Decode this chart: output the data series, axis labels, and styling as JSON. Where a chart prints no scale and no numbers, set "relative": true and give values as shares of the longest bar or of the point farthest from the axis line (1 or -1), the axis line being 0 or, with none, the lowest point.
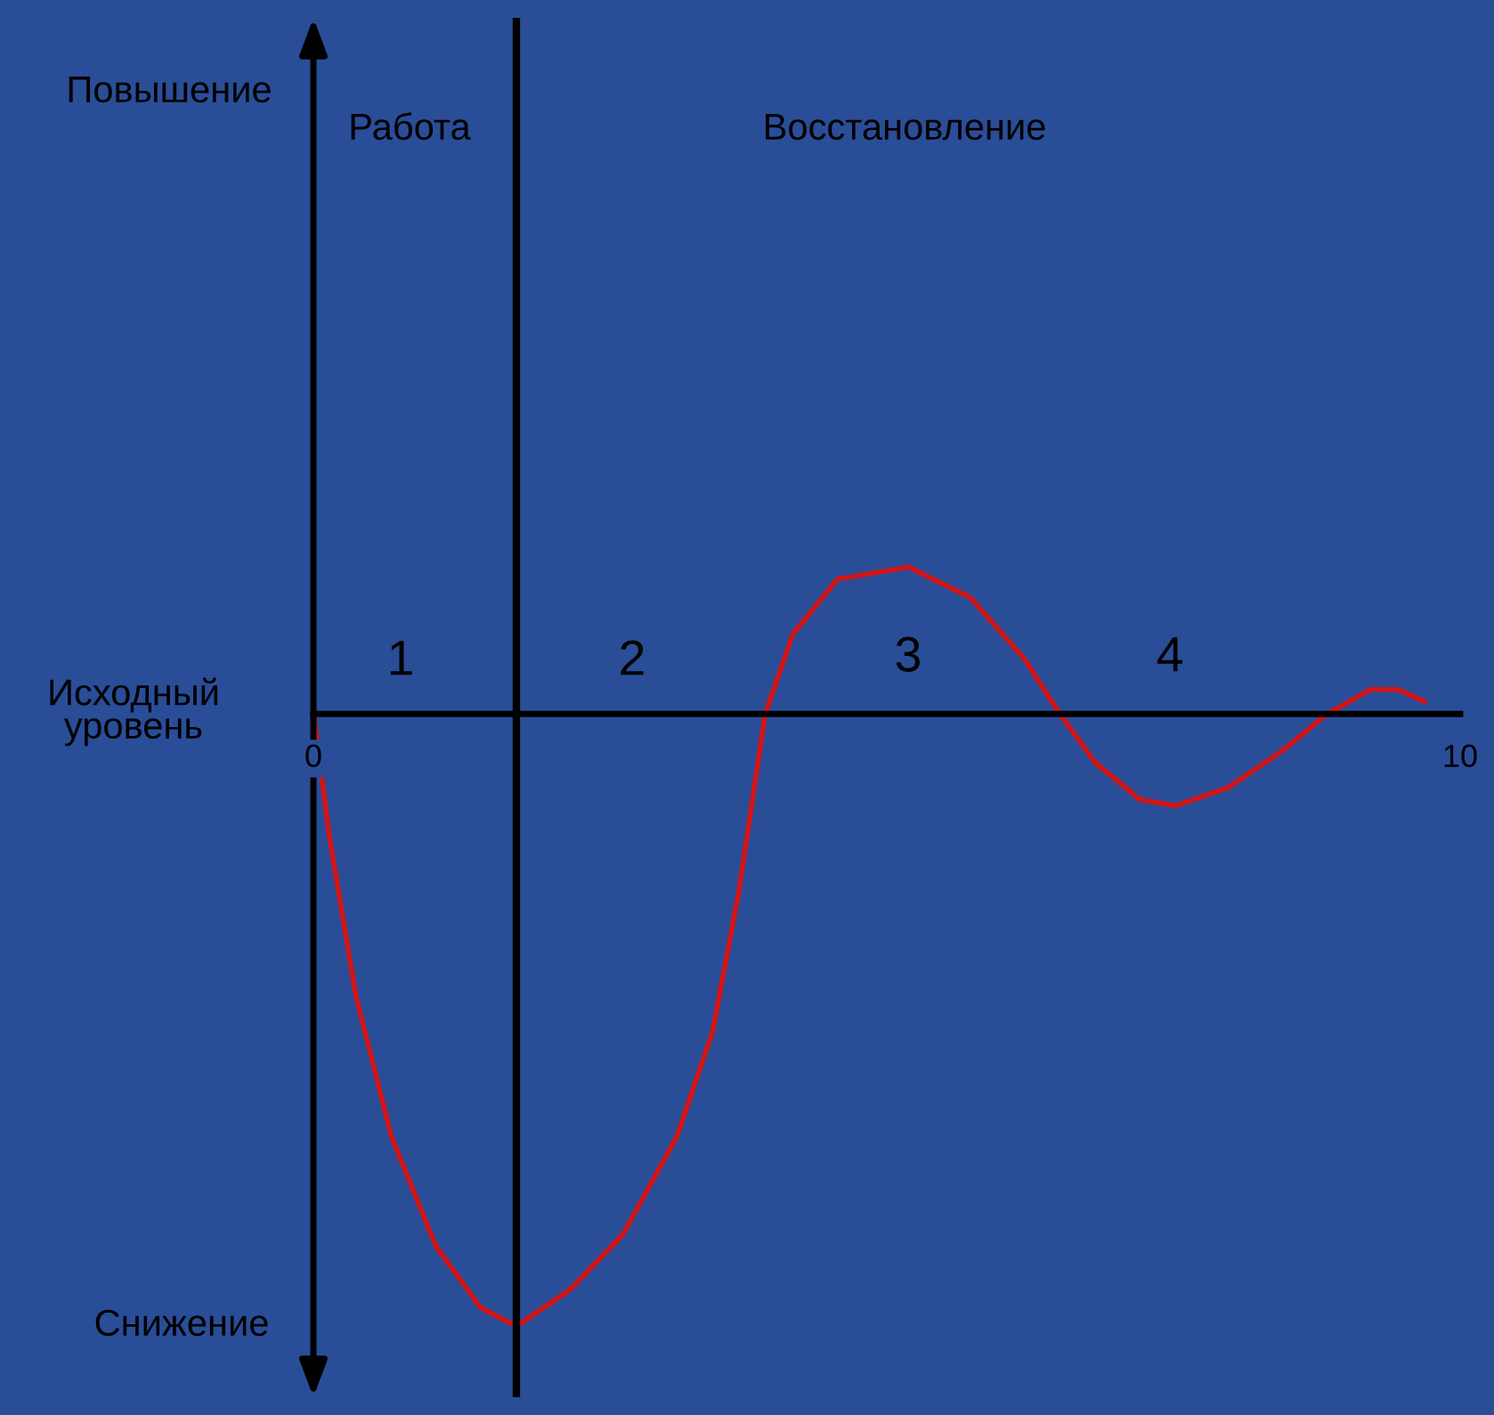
{
  "chart_data": {
    "type": "line",
    "relative": true,
    "x": [
      0,
      0.14,
      0.37,
      0.68,
      1.07,
      1.46,
      1.77,
      2.24,
      2.7,
      3.17,
      3.48,
      3.71,
      3.94,
      4.18,
      4.57,
      5.19,
      5.73,
      6.2,
      6.51,
      6.82,
      7.21,
      7.52,
      7.98,
      8.45,
      8.84,
      9.22,
      9.46,
      9.69
    ],
    "series": [
      {
        "color": "#d41414",
        "values": [
          0,
          -0.2,
          -0.46,
          -0.69,
          -0.87,
          -0.97,
          -1,
          -0.94,
          -0.85,
          -0.69,
          -0.52,
          -0.29,
          0,
          0.13,
          0.22,
          0.24,
          0.19,
          0.09,
          0,
          -0.08,
          -0.14,
          -0.15,
          -0.12,
          -0.06,
          0,
          0.04,
          0.04,
          0.02
        ]
      }
    ],
    "xlim": [
      0,
      10
    ],
    "xticks": [
      0,
      10
    ],
    "ref_lines": [
      {
        "axis": "x",
        "value": 1.77,
        "color": "#000000"
      }
    ],
    "grid": false,
    "annotations": [
      "Повышение",
      "Исходный\nуровень",
      "Снижение",
      "Работа",
      "Восстановление",
      "1",
      "2",
      "3",
      "4"
    ]
  }
}
